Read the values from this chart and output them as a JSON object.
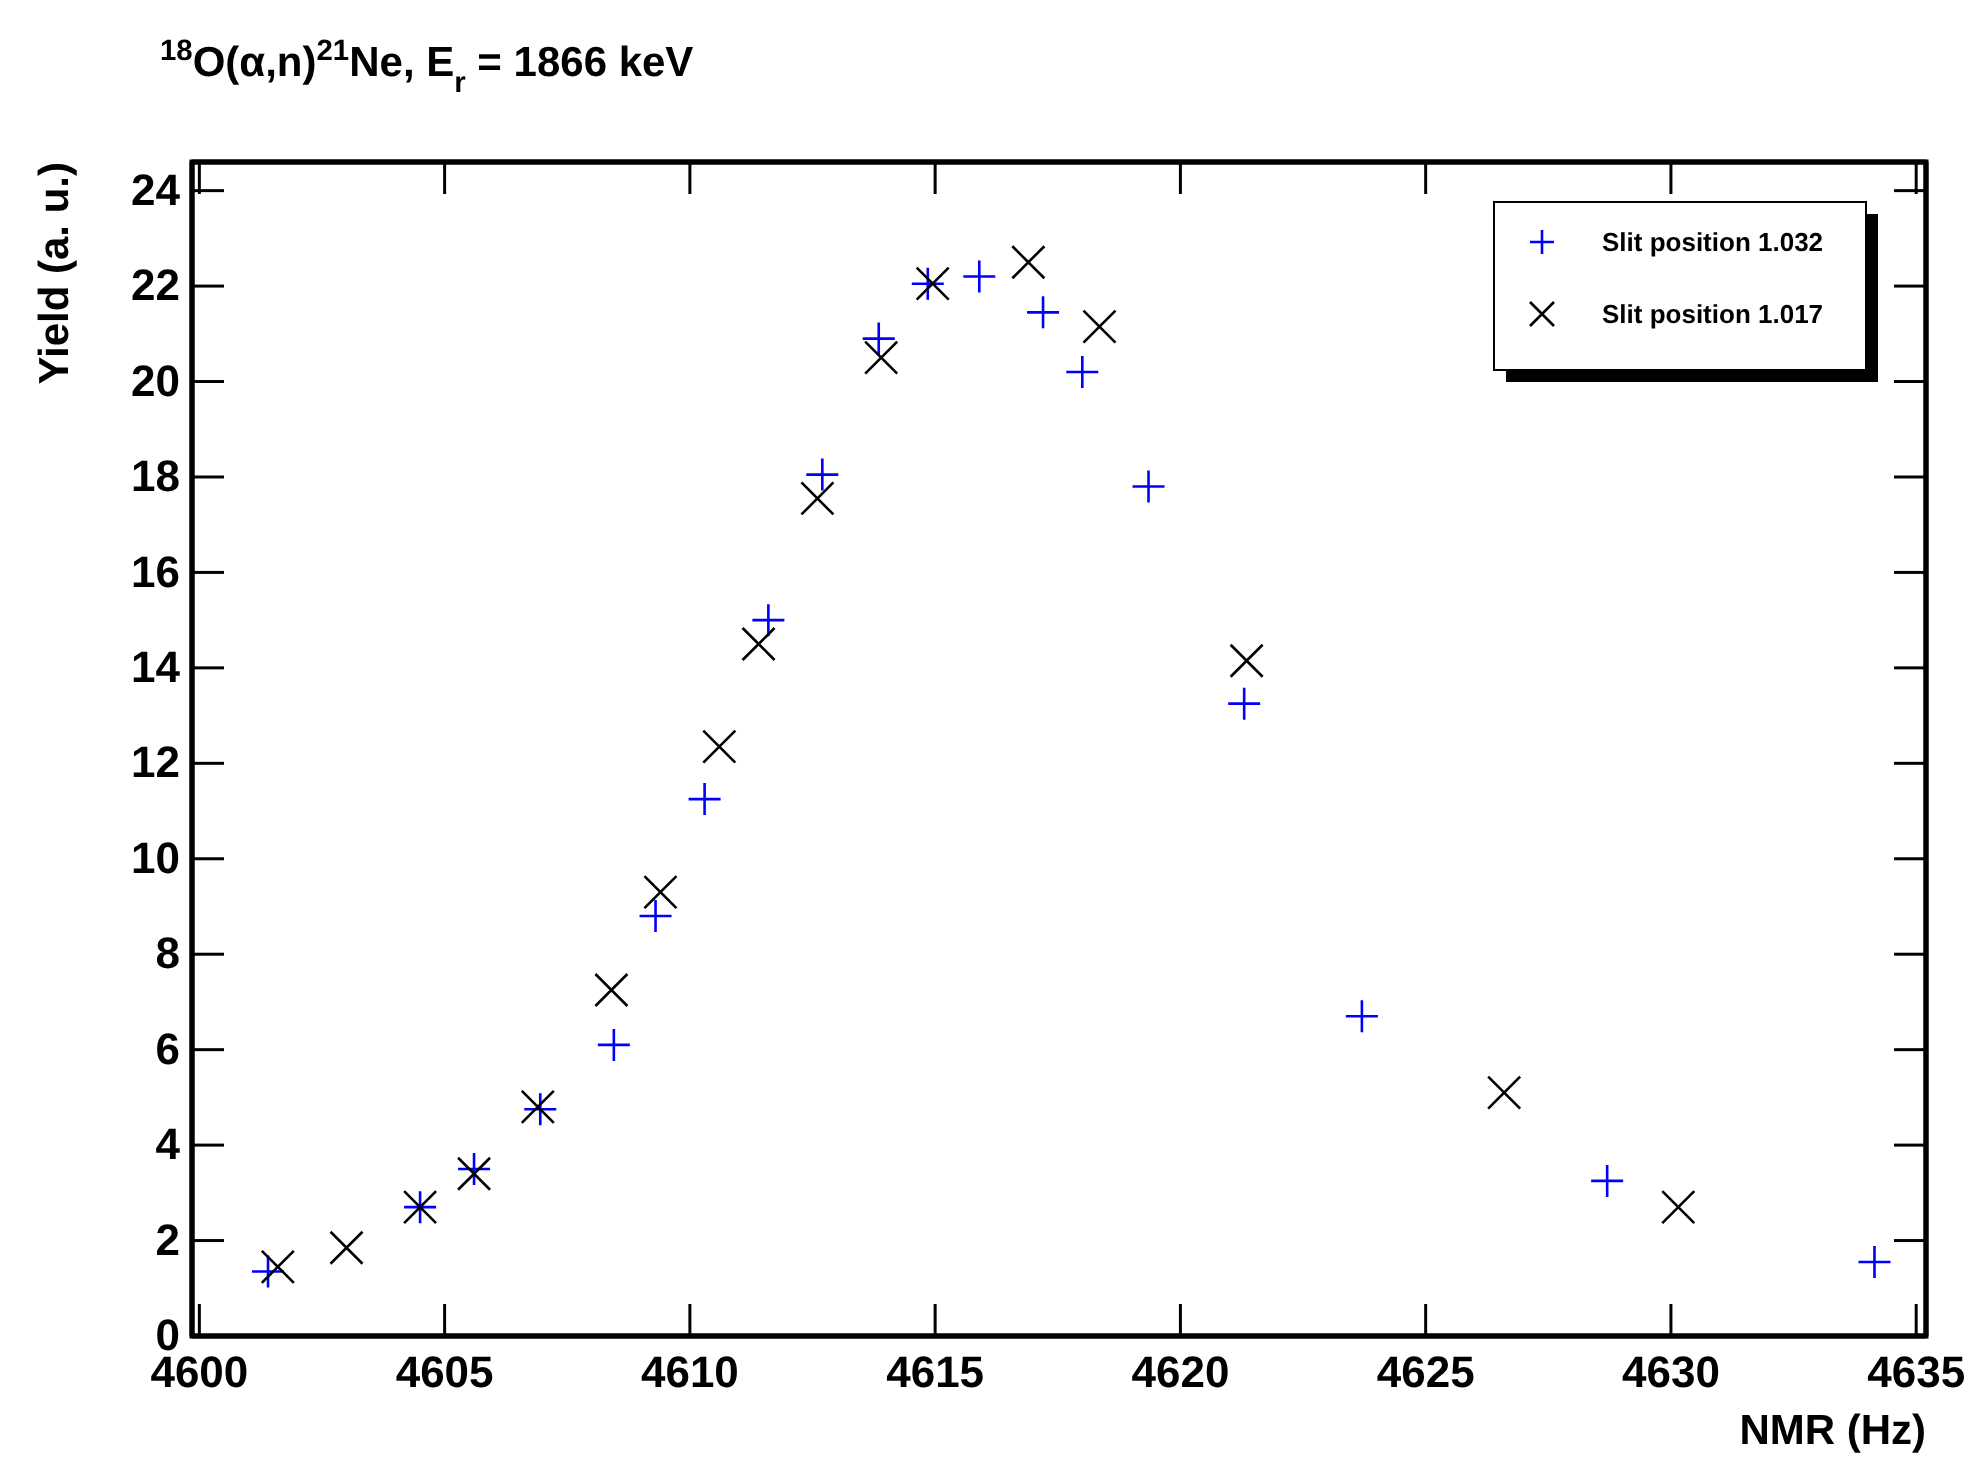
{
  "chart_data": {
    "type": "scatter",
    "title": "$^{18}$O(α,n)$^{21}$Ne, E$_{r}$ = 1866 keV",
    "xlabel": "NMR (Hz)",
    "ylabel": "Yield (a. u.)",
    "xlim": [
      4599.85,
      4635.2
    ],
    "xticks": [
      4600,
      4605,
      4610,
      4615,
      4620,
      4625,
      4630,
      4635
    ],
    "ylim": [
      0,
      24.6
    ],
    "yticks": [
      0,
      2,
      4,
      6,
      8,
      10,
      12,
      14,
      16,
      18,
      20,
      22,
      24
    ],
    "grid": false,
    "legend": "top right",
    "series": [
      {
        "name": "Slit position 1.032",
        "color": "#0000ff",
        "marker": "cross",
        "x": [
          4601.4,
          4604.5,
          4605.6,
          4606.95,
          4608.45,
          4609.3,
          4610.3,
          4611.6,
          4612.7,
          4613.85,
          4614.85,
          4615.9,
          4617.2,
          4618.0,
          4619.35,
          4621.3,
          4623.7,
          4628.7,
          4634.15
        ],
        "values": [
          1.35,
          2.7,
          3.5,
          4.75,
          6.1,
          8.8,
          11.25,
          15.0,
          18.05,
          20.9,
          22.05,
          22.2,
          21.45,
          20.2,
          17.8,
          13.25,
          6.7,
          3.25,
          1.55
        ]
      },
      {
        "name": "Slit position 1.017",
        "color": "#000000",
        "x": [
          4601.6,
          4603.0,
          4604.5,
          4605.6,
          4606.9,
          4608.4,
          4609.4,
          4610.6,
          4611.4,
          4612.6,
          4613.9,
          4614.95,
          4616.9,
          4618.35,
          4621.35,
          4626.6,
          4630.15
        ],
        "values": [
          1.45,
          1.85,
          2.7,
          3.4,
          4.8,
          7.25,
          9.3,
          12.35,
          14.5,
          17.55,
          20.5,
          22.05,
          22.5,
          21.15,
          14.15,
          5.1,
          2.7
        ]
      }
    ]
  }
}
